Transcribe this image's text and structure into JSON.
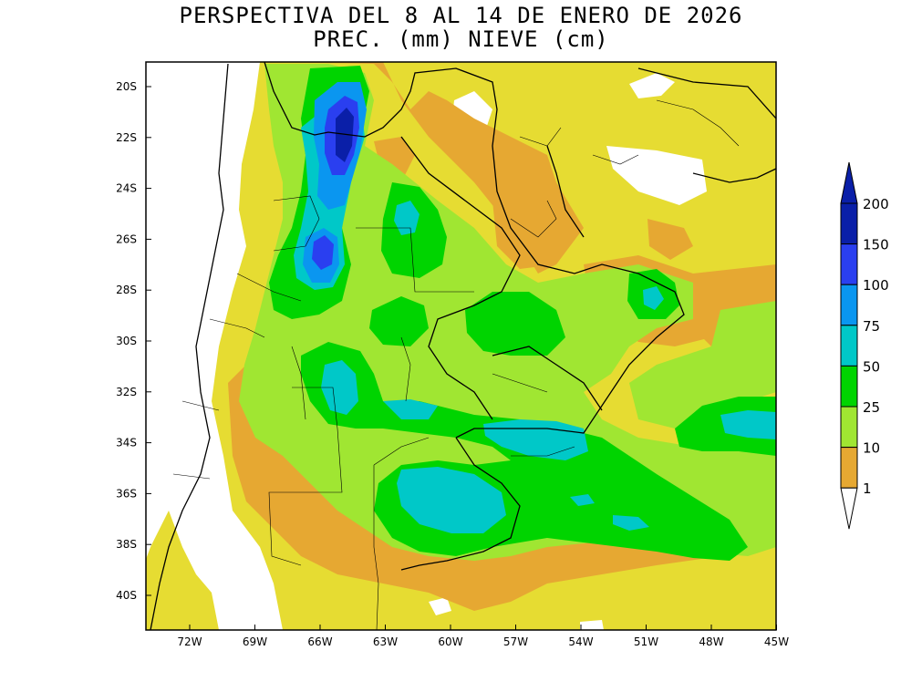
{
  "title": {
    "line1": "PERSPECTIVA DEL 8 AL 14 DE ENERO DE 2026",
    "line2": "PREC. (mm) NIEVE (cm)"
  },
  "axes": {
    "lat_labels": [
      "20S",
      "22S",
      "24S",
      "26S",
      "28S",
      "30S",
      "32S",
      "34S",
      "36S",
      "38S",
      "40S"
    ],
    "lon_labels": [
      "72W",
      "69W",
      "66W",
      "63W",
      "60W",
      "57W",
      "54W",
      "51W",
      "48W",
      "45W"
    ]
  },
  "colorbar": {
    "levels": [
      {
        "label": "200",
        "color": "#0a1fa8"
      },
      {
        "label": "150",
        "color": "#2a3ff0"
      },
      {
        "label": "100",
        "color": "#0a96f0"
      },
      {
        "label": "75",
        "color": "#00c8c8"
      },
      {
        "label": "50",
        "color": "#00d400"
      },
      {
        "label": "25",
        "color": "#a0e632"
      },
      {
        "label": "10",
        "color": "#e6a832"
      },
      {
        "label": "1",
        "color": "#e6dc32"
      }
    ],
    "top_color": "#0a1fa8",
    "bottom_color": "#ffffff"
  },
  "colors": {
    "c1": "#e6dc32",
    "c10": "#e6a832",
    "c25": "#a0e632",
    "c50": "#00d400",
    "c75": "#00c8c8",
    "c100": "#0a96f0",
    "c150": "#2a3ff0",
    "c200": "#0a1fa8"
  }
}
